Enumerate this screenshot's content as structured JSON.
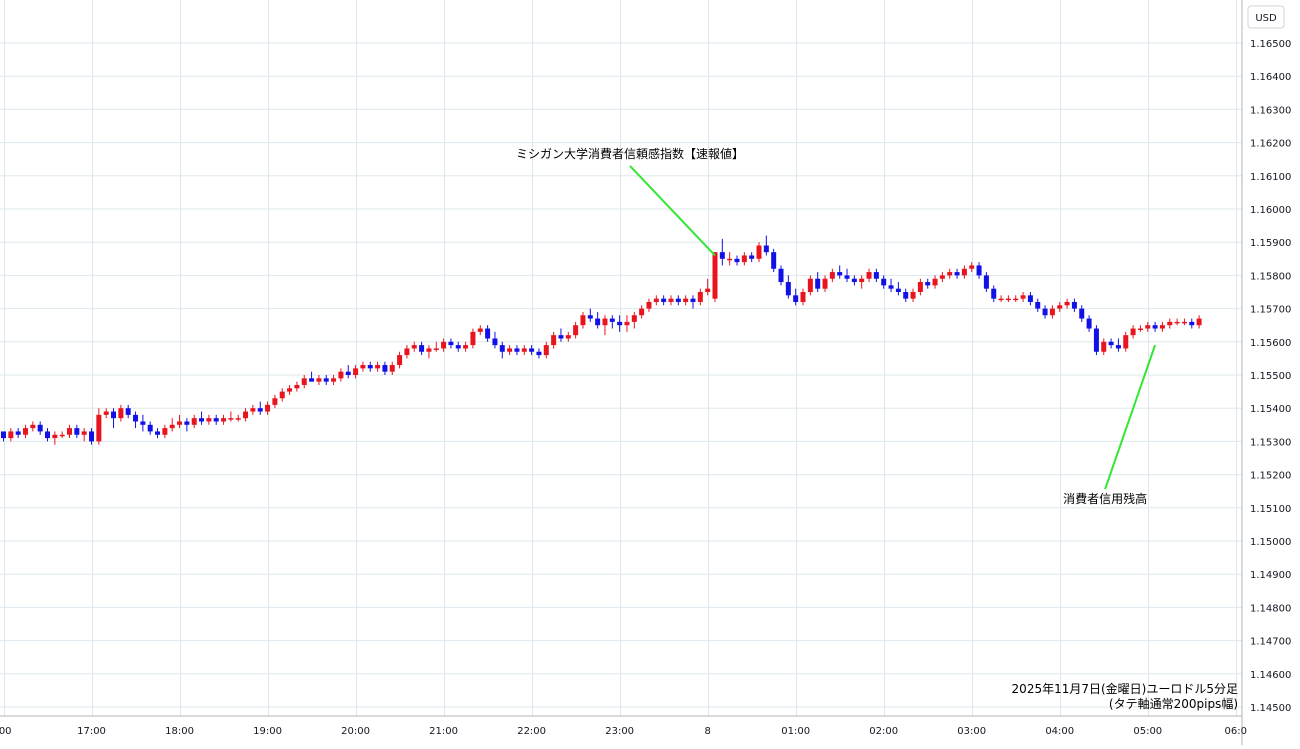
{
  "colors": {
    "up": "#e8141e",
    "down": "#1111e6",
    "grid": "#dde8ee",
    "annotation_line": "#33e633",
    "axis_text": "#131722"
  },
  "chart_data": {
    "type": "candlestick",
    "interval": "5 min",
    "currency_label": "USD",
    "caption_line1": "2025年11月7日(金曜日)ユーロドル5分足",
    "caption_line2": "(タテ軸通常200pips幅)",
    "y_axis": {
      "min": 1.1445,
      "max": 1.166,
      "ticks": [
        1.165,
        1.164,
        1.163,
        1.162,
        1.161,
        1.16,
        1.159,
        1.158,
        1.157,
        1.156,
        1.155,
        1.154,
        1.153,
        1.152,
        1.151,
        1.15,
        1.149,
        1.148,
        1.147,
        1.146,
        1.145
      ],
      "tick_labels": [
        "1.16500",
        "1.16400",
        "1.16300",
        "1.16200",
        "1.16100",
        "1.16000",
        "1.15900",
        "1.15800",
        "1.15700",
        "1.15600",
        "1.15500",
        "1.15400",
        "1.15300",
        "1.15200",
        "1.15100",
        "1.15000",
        "1.14900",
        "1.14800",
        "1.14700",
        "1.14600",
        "1.14500"
      ]
    },
    "x_axis": {
      "labels": [
        ":00",
        "17:00",
        "18:00",
        "19:00",
        "20:00",
        "21:00",
        "22:00",
        "23:00",
        "8",
        "01:00",
        "02:00",
        "03:00",
        "04:00",
        "05:00",
        "06:0"
      ],
      "label_bar_index": [
        0,
        12,
        24,
        36,
        48,
        60,
        72,
        84,
        96,
        108,
        120,
        132,
        144,
        156,
        168
      ]
    },
    "annotations": [
      {
        "text": "ミシガン大学消費者信頼感指数【速報値】",
        "bar_index": 97,
        "price": 1.1586,
        "label_price": 1.1616
      },
      {
        "text": "消費者信用残高",
        "bar_index": 157,
        "price": 1.1559,
        "label_price": 1.1512
      }
    ],
    "candles": [
      [
        1.1533,
        1.1533,
        1.153,
        1.1531
      ],
      [
        1.1531,
        1.1534,
        1.153,
        1.1533
      ],
      [
        1.1533,
        1.1534,
        1.1531,
        1.1532
      ],
      [
        1.1532,
        1.1535,
        1.1531,
        1.1534
      ],
      [
        1.1534,
        1.1536,
        1.1533,
        1.1535
      ],
      [
        1.1535,
        1.1536,
        1.1532,
        1.1533
      ],
      [
        1.1533,
        1.1534,
        1.153,
        1.1531
      ],
      [
        1.1531,
        1.1533,
        1.1529,
        1.1532
      ],
      [
        1.1532,
        1.1533,
        1.1531,
        1.1532
      ],
      [
        1.1532,
        1.1535,
        1.1531,
        1.1534
      ],
      [
        1.1534,
        1.1535,
        1.1531,
        1.1532
      ],
      [
        1.1532,
        1.1534,
        1.153,
        1.1533
      ],
      [
        1.1533,
        1.1534,
        1.1529,
        1.153
      ],
      [
        1.153,
        1.154,
        1.1529,
        1.1538
      ],
      [
        1.1538,
        1.154,
        1.1537,
        1.1539
      ],
      [
        1.1539,
        1.154,
        1.1534,
        1.1537
      ],
      [
        1.1537,
        1.1541,
        1.1536,
        1.154
      ],
      [
        1.154,
        1.1541,
        1.1537,
        1.1538
      ],
      [
        1.1538,
        1.1539,
        1.1534,
        1.1536
      ],
      [
        1.1536,
        1.1538,
        1.1533,
        1.1535
      ],
      [
        1.1535,
        1.1536,
        1.1532,
        1.1533
      ],
      [
        1.1533,
        1.1534,
        1.1531,
        1.1532
      ],
      [
        1.1532,
        1.1535,
        1.1531,
        1.1534
      ],
      [
        1.1534,
        1.1537,
        1.1533,
        1.1535
      ],
      [
        1.1535,
        1.1538,
        1.1534,
        1.1536
      ],
      [
        1.1536,
        1.1537,
        1.1533,
        1.1535
      ],
      [
        1.1535,
        1.1538,
        1.1534,
        1.1537
      ],
      [
        1.1537,
        1.1539,
        1.1535,
        1.1536
      ],
      [
        1.1536,
        1.1538,
        1.1535,
        1.1537
      ],
      [
        1.1537,
        1.1538,
        1.1535,
        1.1536
      ],
      [
        1.1536,
        1.1538,
        1.1535,
        1.1537
      ],
      [
        1.1537,
        1.1539,
        1.1536,
        1.1537
      ],
      [
        1.1537,
        1.1538,
        1.1536,
        1.1537
      ],
      [
        1.1537,
        1.154,
        1.1536,
        1.1539
      ],
      [
        1.1539,
        1.1541,
        1.1538,
        1.154
      ],
      [
        1.154,
        1.1542,
        1.1538,
        1.1539
      ],
      [
        1.1539,
        1.1542,
        1.1538,
        1.1541
      ],
      [
        1.1541,
        1.1544,
        1.154,
        1.1543
      ],
      [
        1.1543,
        1.1546,
        1.1542,
        1.1545
      ],
      [
        1.1545,
        1.1547,
        1.1544,
        1.1546
      ],
      [
        1.1546,
        1.1548,
        1.1545,
        1.1547
      ],
      [
        1.1547,
        1.155,
        1.1546,
        1.1549
      ],
      [
        1.1549,
        1.1551,
        1.1548,
        1.1548
      ],
      [
        1.1548,
        1.155,
        1.1547,
        1.1549
      ],
      [
        1.1549,
        1.155,
        1.1547,
        1.1548
      ],
      [
        1.1548,
        1.155,
        1.1547,
        1.1549
      ],
      [
        1.1549,
        1.1552,
        1.1548,
        1.1551
      ],
      [
        1.1551,
        1.1553,
        1.1549,
        1.155
      ],
      [
        1.155,
        1.1553,
        1.1549,
        1.1552
      ],
      [
        1.1552,
        1.1554,
        1.1551,
        1.1553
      ],
      [
        1.1553,
        1.1554,
        1.1551,
        1.1552
      ],
      [
        1.1552,
        1.1554,
        1.1551,
        1.1553
      ],
      [
        1.1553,
        1.1554,
        1.155,
        1.1551
      ],
      [
        1.1551,
        1.1554,
        1.155,
        1.1553
      ],
      [
        1.1553,
        1.1557,
        1.1552,
        1.1556
      ],
      [
        1.1556,
        1.1559,
        1.1555,
        1.1558
      ],
      [
        1.1558,
        1.156,
        1.1557,
        1.1559
      ],
      [
        1.1559,
        1.156,
        1.1556,
        1.1557
      ],
      [
        1.1557,
        1.1559,
        1.1555,
        1.1558
      ],
      [
        1.1558,
        1.156,
        1.1557,
        1.1558
      ],
      [
        1.1558,
        1.1561,
        1.1557,
        1.156
      ],
      [
        1.156,
        1.1561,
        1.1558,
        1.1559
      ],
      [
        1.1559,
        1.156,
        1.1557,
        1.1558
      ],
      [
        1.1558,
        1.156,
        1.1557,
        1.1559
      ],
      [
        1.1559,
        1.1564,
        1.1558,
        1.1563
      ],
      [
        1.1563,
        1.1565,
        1.1562,
        1.1564
      ],
      [
        1.1564,
        1.1565,
        1.156,
        1.1561
      ],
      [
        1.1561,
        1.1563,
        1.1558,
        1.1559
      ],
      [
        1.1559,
        1.156,
        1.1555,
        1.1557
      ],
      [
        1.1557,
        1.1559,
        1.1556,
        1.1558
      ],
      [
        1.1558,
        1.1559,
        1.1556,
        1.1557
      ],
      [
        1.1557,
        1.1559,
        1.1556,
        1.1558
      ],
      [
        1.1558,
        1.1559,
        1.1556,
        1.1557
      ],
      [
        1.1557,
        1.1558,
        1.1555,
        1.1556
      ],
      [
        1.1556,
        1.156,
        1.1555,
        1.1559
      ],
      [
        1.1559,
        1.1563,
        1.1558,
        1.1562
      ],
      [
        1.1562,
        1.1564,
        1.156,
        1.1561
      ],
      [
        1.1561,
        1.1563,
        1.156,
        1.1562
      ],
      [
        1.1562,
        1.1566,
        1.1561,
        1.1565
      ],
      [
        1.1565,
        1.1569,
        1.1564,
        1.1568
      ],
      [
        1.1568,
        1.157,
        1.1566,
        1.1567
      ],
      [
        1.1567,
        1.1569,
        1.1564,
        1.1565
      ],
      [
        1.1565,
        1.1568,
        1.1562,
        1.1567
      ],
      [
        1.1567,
        1.1568,
        1.1564,
        1.1566
      ],
      [
        1.1566,
        1.1568,
        1.1563,
        1.1565
      ],
      [
        1.1565,
        1.1568,
        1.1563,
        1.1566
      ],
      [
        1.1566,
        1.1569,
        1.1564,
        1.1568
      ],
      [
        1.1568,
        1.1571,
        1.1567,
        1.157
      ],
      [
        1.157,
        1.1573,
        1.1569,
        1.1572
      ],
      [
        1.1572,
        1.1574,
        1.1571,
        1.1573
      ],
      [
        1.1573,
        1.1574,
        1.1571,
        1.1572
      ],
      [
        1.1572,
        1.1574,
        1.1571,
        1.1573
      ],
      [
        1.1573,
        1.1574,
        1.1571,
        1.1572
      ],
      [
        1.1572,
        1.1574,
        1.1571,
        1.1573
      ],
      [
        1.1573,
        1.1574,
        1.157,
        1.1572
      ],
      [
        1.1572,
        1.1576,
        1.1571,
        1.1575
      ],
      [
        1.1575,
        1.1579,
        1.1574,
        1.1576
      ],
      [
        1.1573,
        1.1587,
        1.1572,
        1.1587
      ],
      [
        1.1587,
        1.1591,
        1.1583,
        1.1585
      ],
      [
        1.1585,
        1.1587,
        1.1583,
        1.1585
      ],
      [
        1.1585,
        1.1586,
        1.1583,
        1.1584
      ],
      [
        1.1584,
        1.1587,
        1.1583,
        1.1586
      ],
      [
        1.1586,
        1.1587,
        1.1584,
        1.1585
      ],
      [
        1.1585,
        1.159,
        1.1584,
        1.1589
      ],
      [
        1.1589,
        1.1592,
        1.1586,
        1.1587
      ],
      [
        1.1587,
        1.1588,
        1.1581,
        1.1582
      ],
      [
        1.1582,
        1.1583,
        1.1577,
        1.1578
      ],
      [
        1.1578,
        1.158,
        1.1573,
        1.1574
      ],
      [
        1.1574,
        1.1576,
        1.1571,
        1.1572
      ],
      [
        1.1572,
        1.1576,
        1.1571,
        1.1575
      ],
      [
        1.1575,
        1.158,
        1.1574,
        1.1579
      ],
      [
        1.1579,
        1.1581,
        1.1575,
        1.1576
      ],
      [
        1.1576,
        1.158,
        1.1575,
        1.1579
      ],
      [
        1.1579,
        1.1582,
        1.1578,
        1.1581
      ],
      [
        1.1581,
        1.1583,
        1.1579,
        1.158
      ],
      [
        1.158,
        1.1582,
        1.1578,
        1.1579
      ],
      [
        1.1579,
        1.158,
        1.1577,
        1.1578
      ],
      [
        1.1578,
        1.158,
        1.1576,
        1.1579
      ],
      [
        1.1579,
        1.1582,
        1.1578,
        1.1581
      ],
      [
        1.1581,
        1.1582,
        1.1578,
        1.1579
      ],
      [
        1.1579,
        1.158,
        1.1576,
        1.1577
      ],
      [
        1.1577,
        1.1579,
        1.1575,
        1.1576
      ],
      [
        1.1576,
        1.1578,
        1.1574,
        1.1575
      ],
      [
        1.1575,
        1.1576,
        1.1572,
        1.1573
      ],
      [
        1.1573,
        1.1576,
        1.1572,
        1.1575
      ],
      [
        1.1575,
        1.1579,
        1.1574,
        1.1578
      ],
      [
        1.1578,
        1.1579,
        1.1576,
        1.1577
      ],
      [
        1.1577,
        1.158,
        1.1576,
        1.1579
      ],
      [
        1.1579,
        1.1581,
        1.1578,
        1.158
      ],
      [
        1.158,
        1.1582,
        1.1579,
        1.1581
      ],
      [
        1.1581,
        1.1582,
        1.1579,
        1.158
      ],
      [
        1.158,
        1.1583,
        1.1579,
        1.1582
      ],
      [
        1.1582,
        1.1584,
        1.1581,
        1.1583
      ],
      [
        1.1583,
        1.1584,
        1.1579,
        1.158
      ],
      [
        1.158,
        1.1581,
        1.1575,
        1.1576
      ],
      [
        1.1576,
        1.1577,
        1.1572,
        1.1573
      ],
      [
        1.1573,
        1.1574,
        1.1572,
        1.1573
      ],
      [
        1.1573,
        1.1574,
        1.1572,
        1.1573
      ],
      [
        1.1573,
        1.1574,
        1.1572,
        1.1573
      ],
      [
        1.1573,
        1.1575,
        1.1572,
        1.1574
      ],
      [
        1.1574,
        1.1575,
        1.1571,
        1.1572
      ],
      [
        1.1572,
        1.1573,
        1.1569,
        1.157
      ],
      [
        1.157,
        1.1571,
        1.1567,
        1.1568
      ],
      [
        1.1568,
        1.1571,
        1.1567,
        1.157
      ],
      [
        1.157,
        1.1572,
        1.1569,
        1.1571
      ],
      [
        1.1571,
        1.1573,
        1.157,
        1.1572
      ],
      [
        1.1572,
        1.1573,
        1.1569,
        1.157
      ],
      [
        1.157,
        1.1571,
        1.1566,
        1.1567
      ],
      [
        1.1567,
        1.1568,
        1.1563,
        1.1564
      ],
      [
        1.1564,
        1.1565,
        1.1556,
        1.1557
      ],
      [
        1.1557,
        1.1561,
        1.1556,
        1.156
      ],
      [
        1.156,
        1.1561,
        1.1558,
        1.1559
      ],
      [
        1.1559,
        1.1561,
        1.1557,
        1.1558
      ],
      [
        1.1558,
        1.1563,
        1.1557,
        1.1562
      ],
      [
        1.1562,
        1.1565,
        1.1561,
        1.1564
      ],
      [
        1.1564,
        1.1565,
        1.1563,
        1.1564
      ],
      [
        1.1564,
        1.1566,
        1.1563,
        1.1565
      ],
      [
        1.1565,
        1.1566,
        1.1563,
        1.1564
      ],
      [
        1.1564,
        1.1566,
        1.1563,
        1.1565
      ],
      [
        1.1565,
        1.1567,
        1.1564,
        1.1566
      ],
      [
        1.1566,
        1.1567,
        1.1565,
        1.1566
      ],
      [
        1.1566,
        1.1567,
        1.1565,
        1.1566
      ],
      [
        1.1566,
        1.1567,
        1.1564,
        1.1565
      ],
      [
        1.1565,
        1.1568,
        1.1564,
        1.1567
      ]
    ]
  }
}
